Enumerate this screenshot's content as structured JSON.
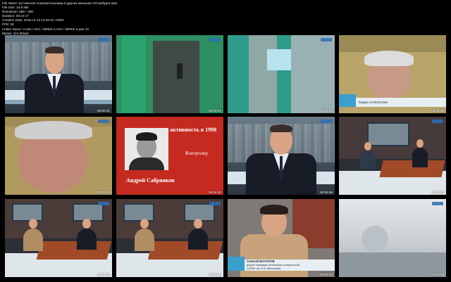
{
  "meta_lines": [
    "File Name: Кутчинская погрешительница в другом малышко Петербурга.mp4",
    "File Size: 34.8 MB",
    "Resolution: 858 * 480",
    "Duration: 00:10:17",
    "Creation Date: 2016-11-13 12:32:43 +0000",
    "FPS: 25",
    "Codec Name: H.264 / AVC / MPEG-4 AVC / MPEG-4 part 10",
    "Bitrate: 321.8Kbps"
  ],
  "thumbnails": [
    {
      "ts": "00:00:01"
    },
    {
      "ts": "00:00:57"
    },
    {
      "ts": "00:01:53"
    },
    {
      "ts": "00:02:49"
    },
    {
      "ts": "00:03:45"
    },
    {
      "ts": "00:04:40"
    },
    {
      "ts": "00:05:36"
    },
    {
      "ts": "00:06:32"
    },
    {
      "ts": "00:07:28"
    },
    {
      "ts": "00:08:24"
    },
    {
      "ts": "00:09:20"
    },
    {
      "ts": "00:10:16"
    }
  ],
  "captions": {
    "tile4_name": "Тамара САМСОНОВА",
    "tile6_title": "активность в 1998",
    "tile6_role": "Контролер",
    "tile6_name": "Андрей Сабрянков",
    "tile11_name": "Алексей БОЧАРОВ",
    "tile11_line1": "доцент кафедры психиатрии и наркологии",
    "tile11_line2": "СЗГМУ им. И.И. Мечникова"
  },
  "colors": {
    "background": "#000000",
    "accent_blue": "#2b6fb8",
    "red_card": "#c42a1f"
  }
}
